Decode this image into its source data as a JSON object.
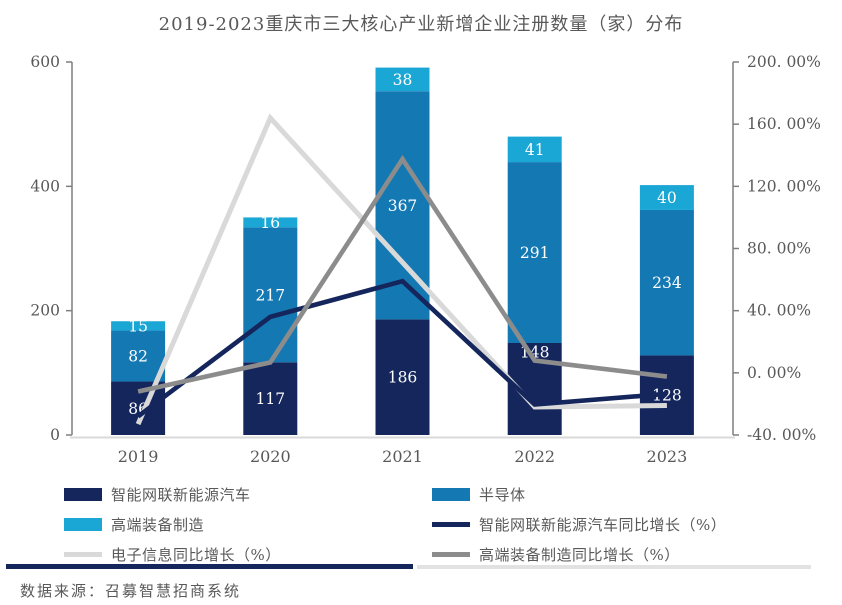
{
  "title": "2019-2023重庆市三大核心产业新增企业注册数量（家）分布",
  "source": "数据来源：召募智慧招商系统",
  "colors": {
    "bar_navy": "#14265C",
    "bar_blue": "#1478B3",
    "bar_cyan": "#1BA7D5",
    "line_navy": "#14265C",
    "line_light_gray": "#D9D9D9",
    "line_dark_gray": "#8C8C8C",
    "axis_line": "#7F7F7F",
    "baseline": "#D9D9D9",
    "text_gray": "#595959",
    "bar_label": "#FFFFFF"
  },
  "chart_data": {
    "type": "bar",
    "subtype": "stacked-bars-with-lines",
    "title": "2019-2023重庆市三大核心产业新增企业注册数量（家）分布",
    "categories": [
      "2019",
      "2020",
      "2021",
      "2022",
      "2023"
    ],
    "bar_series": [
      {
        "name": "智能网联新能源汽车",
        "color": "#14265C",
        "values": [
          86,
          117,
          186,
          148,
          128
        ],
        "label_dy": [
          0,
          0,
          0,
          -37,
          0
        ]
      },
      {
        "name": "半导体",
        "color": "#1478B3",
        "values": [
          82,
          217,
          367,
          291,
          234
        ],
        "label_dy": [
          0,
          0,
          0,
          0,
          0
        ]
      },
      {
        "name": "高端装备制造",
        "color": "#1BA7D5",
        "values": [
          15,
          16,
          38,
          41,
          40
        ],
        "label_dy": [
          0,
          0,
          0,
          0,
          0
        ]
      }
    ],
    "line_series": [
      {
        "name": "电子信息同比增长（%）",
        "color": "#D9D9D9",
        "values": [
          -33,
          164,
          71,
          -22,
          -21
        ]
      },
      {
        "name": "智能网联新能源汽车同比增长（%）",
        "color": "#14265C",
        "values": [
          -28,
          36,
          59,
          -20.4,
          -13.5
        ]
      },
      {
        "name": "高端装备制造同比增长（%）",
        "color": "#8C8C8C",
        "values": [
          -12,
          6.7,
          137.5,
          7.9,
          -2.4
        ]
      }
    ],
    "left_axis": {
      "min": 0,
      "max": 600,
      "tick_values": [
        0,
        200,
        400,
        600
      ],
      "tick_labels": [
        "0",
        "200",
        "400",
        "600"
      ]
    },
    "right_axis": {
      "min": -40,
      "max": 200,
      "tick_values": [
        -40,
        0,
        40,
        80,
        120,
        160,
        200
      ],
      "tick_labels": [
        "-40. 00%",
        "0. 00%",
        "40. 00%",
        "80. 00%",
        "120. 00%",
        "160. 00%",
        "200. 00%"
      ]
    },
    "grid": "off",
    "legend_position": "bottom"
  },
  "legend": {
    "items": [
      {
        "label": "智能网联新能源汽车",
        "swatch": "rect",
        "color": "#14265C"
      },
      {
        "label": "半导体",
        "swatch": "rect",
        "color": "#1478B3"
      },
      {
        "label": "高端装备制造",
        "swatch": "rect",
        "color": "#1BA7D5"
      },
      {
        "label": "智能网联新能源汽车同比增长（%）",
        "swatch": "line",
        "color": "#14265C"
      },
      {
        "label": "电子信息同比增长（%）",
        "swatch": "line",
        "color": "#D9D9D9"
      },
      {
        "label": "高端装备制造同比增长（%）",
        "swatch": "line",
        "color": "#8C8C8C"
      }
    ]
  }
}
